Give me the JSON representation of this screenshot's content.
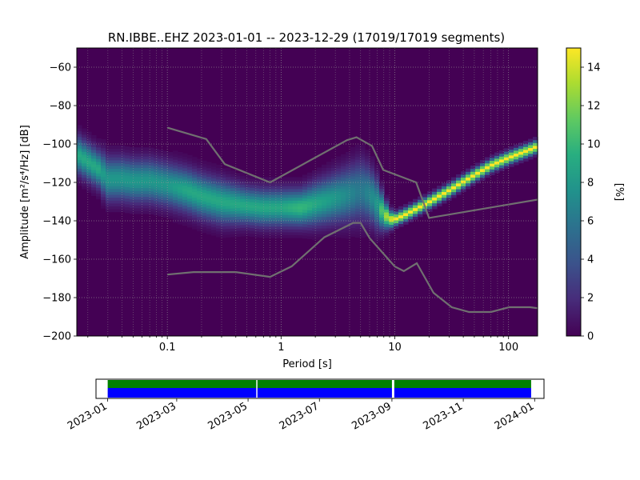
{
  "chart_data": [
    {
      "type": "heatmap",
      "title": "RN.IBBE..EHZ   2023-01-01 -- 2023-12-29  (17019/17019 segments)",
      "xlabel": "Period [s]",
      "ylabel": "Amplitude [m²/s⁴/Hz] [dB]",
      "x_scale": "log",
      "xlim": [
        0.016,
        180
      ],
      "ylim": [
        -200,
        -50
      ],
      "x_ticks": [
        0.1,
        1,
        10,
        100
      ],
      "x_tick_labels": [
        "0.1",
        "1",
        "10",
        "100"
      ],
      "y_ticks": [
        -200,
        -180,
        -160,
        -140,
        -120,
        -100,
        -80,
        -60
      ],
      "y_tick_labels": [
        "−200",
        "−180",
        "−160",
        "−140",
        "−120",
        "−100",
        "−80",
        "−60"
      ],
      "grid": true,
      "colorbar": {
        "label": "[%]",
        "range": [
          0,
          15
        ],
        "ticks": [
          0,
          2,
          4,
          6,
          8,
          10,
          12,
          14
        ],
        "tick_labels": [
          "0",
          "2",
          "4",
          "6",
          "8",
          "10",
          "12",
          "14"
        ],
        "colormap": "viridis"
      },
      "psd_mode": {
        "period": [
          0.016,
          0.02,
          0.025,
          0.028,
          0.03,
          0.04,
          0.05,
          0.07,
          0.1,
          0.15,
          0.2,
          0.3,
          0.5,
          0.7,
          1,
          1.5,
          2,
          3,
          4,
          5,
          6,
          7,
          8,
          9,
          10,
          12,
          15,
          20,
          30,
          50,
          70,
          100,
          150,
          180
        ],
        "amplitude_db": [
          -105,
          -109,
          -113,
          -116,
          -118,
          -118,
          -119,
          -119,
          -121,
          -124,
          -127,
          -130,
          -132,
          -133,
          -133,
          -133,
          -131,
          -128,
          -126,
          -124,
          -126,
          -131,
          -136,
          -139,
          -139,
          -137,
          -134,
          -130,
          -124,
          -116,
          -111,
          -107,
          -103,
          -101
        ],
        "spread_db": [
          6,
          6,
          6,
          7,
          7,
          7,
          7,
          7,
          7,
          7,
          7,
          7,
          6,
          6,
          6,
          6,
          7,
          8,
          9,
          10,
          9,
          8,
          5,
          3,
          2,
          2,
          2,
          2,
          2,
          2,
          2,
          2,
          2,
          2
        ],
        "peak_percent": [
          9,
          9,
          9,
          8,
          8,
          8,
          8,
          8,
          8,
          9,
          9,
          9,
          9,
          9,
          9,
          10,
          9,
          8,
          7,
          6,
          7,
          8,
          12,
          14,
          15,
          15,
          15,
          15,
          15,
          15,
          15,
          15,
          15,
          15
        ]
      },
      "noise_models": {
        "color": "#707070",
        "high": {
          "period": [
            0.1,
            0.22,
            0.32,
            0.8,
            3.8,
            4.6,
            6.3,
            7.9,
            15.4,
            20,
            354.8
          ],
          "amplitude_db": [
            -91.5,
            -97.4,
            -110.5,
            -120,
            -98,
            -96.5,
            -101,
            -113.5,
            -120,
            -138.5,
            -126
          ]
        },
        "low": {
          "period": [
            0.1,
            0.17,
            0.4,
            0.8,
            1.24,
            2.4,
            4.3,
            5,
            6,
            10,
            12,
            15.6,
            21.9,
            31.6,
            45,
            70,
            101,
            154,
            328
          ],
          "amplitude_db": [
            -168,
            -166.7,
            -166.7,
            -169.2,
            -163.7,
            -148.6,
            -141.1,
            -141.1,
            -149,
            -163.8,
            -166.2,
            -162.1,
            -177.5,
            -185,
            -187.5,
            -187.5,
            -185,
            -185,
            -187.5
          ]
        }
      }
    },
    {
      "type": "timeline",
      "x_tick_labels": [
        "2023-01",
        "2023-03",
        "2023-05",
        "2023-07",
        "2023-09",
        "2023-11",
        "2024-01"
      ],
      "x_ticks": [
        "2023-01-01",
        "2023-03-01",
        "2023-05-01",
        "2023-07-01",
        "2023-09-01",
        "2023-11-01",
        "2024-01-01"
      ],
      "xlim": [
        "2022-12-22",
        "2024-01-09"
      ],
      "coverage": {
        "start": "2023-01-01",
        "end": "2023-12-29",
        "gaps": [
          {
            "start": "2023-05-08",
            "end": "2023-05-09"
          },
          {
            "start": "2023-09-01",
            "end": "2023-09-03"
          }
        ]
      },
      "colors": {
        "data": "#0000ff",
        "used": "#008000",
        "gap": "#ffffff"
      }
    }
  ]
}
